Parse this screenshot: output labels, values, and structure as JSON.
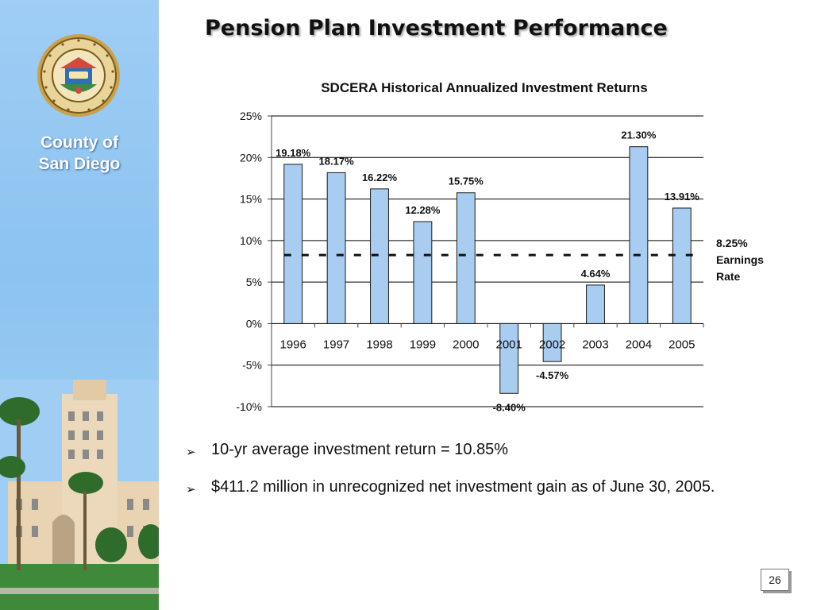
{
  "slide": {
    "title": "Pension Plan Investment Performance",
    "page_number": "26"
  },
  "sidebar": {
    "county_line1": "County of",
    "county_line2": "San Diego",
    "seal_text": [
      "THE NOBLEST MOTIVE IS THE PUBLIC GOOD",
      "COUNTY OF",
      "SAN DIEGO",
      "MDCCCL"
    ],
    "colors": {
      "background": "#9fcdf4",
      "label": "#ffffff"
    }
  },
  "bullets": [
    {
      "text": "10-yr average investment return = 10.85%"
    },
    {
      "text": "$411.2 million in unrecognized net investment gain as of June 30, 2005."
    }
  ],
  "chart_data": {
    "type": "bar",
    "title": "SDCERA Historical Annualized Investment Returns",
    "xlabel": "",
    "ylabel": "",
    "categories": [
      "1996",
      "1997",
      "1998",
      "1999",
      "2000",
      "2001",
      "2002",
      "2003",
      "2004",
      "2005"
    ],
    "values": [
      19.18,
      18.17,
      16.22,
      12.28,
      15.75,
      -8.4,
      -4.57,
      4.64,
      21.3,
      13.91
    ],
    "data_labels": [
      "19.18%",
      "18.17%",
      "16.22%",
      "12.28%",
      "15.75%",
      "-8.40%",
      "-4.57%",
      "4.64%",
      "21.30%",
      "13.91%"
    ],
    "ylim": [
      -10,
      25
    ],
    "y_ticks": [
      25,
      20,
      15,
      10,
      5,
      0,
      -5,
      -10
    ],
    "y_tick_labels": [
      "25%",
      "20%",
      "15%",
      "10%",
      "5%",
      "0%",
      "-5%",
      "-10%"
    ],
    "grid": true,
    "reference_line": {
      "value": 8.25,
      "style": "dashed",
      "label_lines": [
        "8.25%",
        "Earnings",
        "Rate"
      ]
    },
    "colors": {
      "bar_fill": "#a9cdf0",
      "bar_stroke": "#1a1a1a",
      "reference_line": "#111111",
      "grid": "#000000"
    }
  }
}
